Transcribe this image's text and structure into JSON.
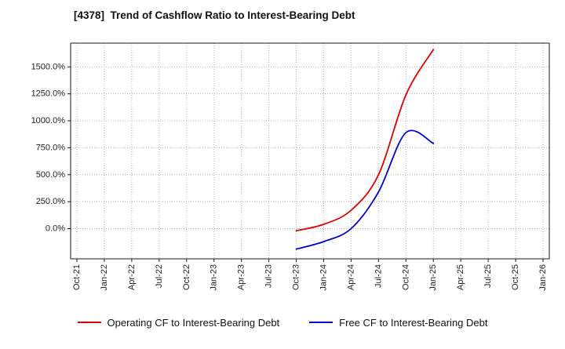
{
  "chart_data": {
    "type": "line",
    "title": "[4378]  Trend of Cashflow Ratio to Interest-Bearing Debt",
    "x_ticks": [
      "Oct-21",
      "Jan-22",
      "Apr-22",
      "Jul-22",
      "Oct-22",
      "Jan-23",
      "Apr-23",
      "Jul-23",
      "Oct-23",
      "Jan-24",
      "Apr-24",
      "Jul-24",
      "Oct-24",
      "Jan-25",
      "Apr-25",
      "Jul-25",
      "Oct-25",
      "Jan-26"
    ],
    "y_ticks": [
      {
        "value": 0,
        "label": "0.0%"
      },
      {
        "value": 250,
        "label": "250.0%"
      },
      {
        "value": 500,
        "label": "500.0%"
      },
      {
        "value": 750,
        "label": "750.0%"
      },
      {
        "value": 1000,
        "label": "1000.0%"
      },
      {
        "value": 1250,
        "label": "1250.0%"
      },
      {
        "value": 1500,
        "label": "1500.0%"
      }
    ],
    "ylim": [
      -280,
      1720
    ],
    "grid": "dotted",
    "legend_position": "bottom",
    "series": [
      {
        "name": "Operating CF to Interest-Bearing Debt",
        "color": "#e00000",
        "points": [
          {
            "x": "Oct-23",
            "y": -20
          },
          {
            "x": "Jan-24",
            "y": 40
          },
          {
            "x": "Apr-24",
            "y": 170
          },
          {
            "x": "Jul-24",
            "y": 500
          },
          {
            "x": "Oct-24",
            "y": 1240
          },
          {
            "x": "Jan-25",
            "y": 1660
          }
        ]
      },
      {
        "name": "Free CF to Interest-Bearing Debt",
        "color": "#0000d8",
        "points": [
          {
            "x": "Oct-23",
            "y": -190
          },
          {
            "x": "Jan-24",
            "y": -120
          },
          {
            "x": "Apr-24",
            "y": 0
          },
          {
            "x": "Jul-24",
            "y": 340
          },
          {
            "x": "Oct-24",
            "y": 890
          },
          {
            "x": "Jan-25",
            "y": 790
          }
        ]
      }
    ]
  }
}
